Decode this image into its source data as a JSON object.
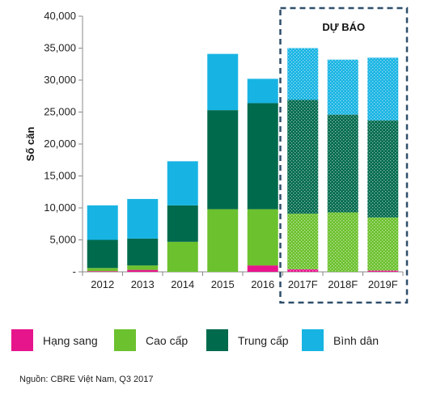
{
  "chart_data": {
    "type": "bar",
    "stacked": true,
    "categories": [
      "2012",
      "2013",
      "2014",
      "2015",
      "2016",
      "2017F",
      "2018F",
      "2019F"
    ],
    "forecast_categories": [
      "2017F",
      "2018F",
      "2019F"
    ],
    "forecast_label": "DỰ BÁO",
    "ylabel": "Số căn",
    "ylim": [
      0,
      40000
    ],
    "yticks": [
      0,
      5000,
      10000,
      15000,
      20000,
      25000,
      30000,
      35000,
      40000
    ],
    "ytick_labels": [
      "-",
      "5,000",
      "10,000",
      "15,000",
      "20,000",
      "25,000",
      "30,000",
      "35,000",
      "40,000"
    ],
    "grid": false,
    "legend_position": "bottom",
    "series": [
      {
        "name": "Hạng sang",
        "color": "#e6158c",
        "values": [
          100,
          300,
          0,
          0,
          1000,
          400,
          0,
          200
        ]
      },
      {
        "name": "Cao cấp",
        "color": "#6cc12e",
        "values": [
          500,
          700,
          4700,
          9800,
          8800,
          8700,
          9300,
          8300
        ]
      },
      {
        "name": "Trung cấp",
        "color": "#006a4d",
        "values": [
          4400,
          4200,
          5700,
          15500,
          16600,
          17800,
          15300,
          15200
        ]
      },
      {
        "name": "Bình dân",
        "color": "#17b4e3",
        "values": [
          5400,
          6200,
          6900,
          8800,
          3800,
          8100,
          8600,
          9800
        ]
      }
    ]
  },
  "source": "Nguồn: CBRE Việt Nam, Q3 2017"
}
